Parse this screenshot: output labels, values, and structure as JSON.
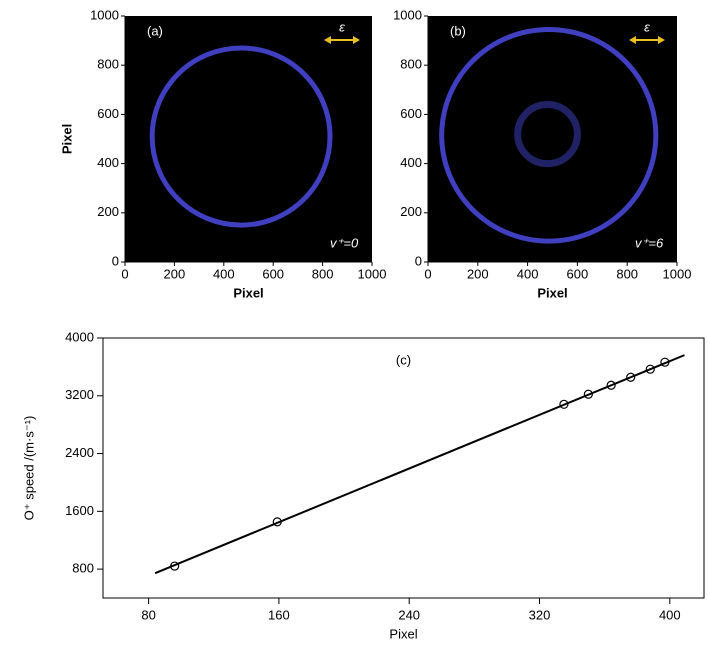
{
  "chart_data": [
    {
      "type": "image",
      "panel_label": "(a)",
      "annotation": "v⁺=0",
      "polarization": "ε",
      "xlabel": "Pixel",
      "ylabel": "Pixel",
      "xlim": [
        0,
        1000
      ],
      "ylim": [
        0,
        1000
      ],
      "xticks": [
        0,
        200,
        400,
        600,
        800,
        1000
      ],
      "yticks": [
        0,
        200,
        400,
        600,
        800,
        1000
      ],
      "background": "#000000",
      "color": "#4a4ae0",
      "rings": [
        {
          "cx": 470,
          "cy": 510,
          "r": 360
        }
      ]
    },
    {
      "type": "image",
      "panel_label": "(b)",
      "annotation": "v⁺=6",
      "polarization": "ε",
      "xlabel": "Pixel",
      "ylabel": null,
      "xlim": [
        0,
        1000
      ],
      "ylim": [
        0,
        1000
      ],
      "xticks": [
        0,
        200,
        400,
        600,
        800,
        1000
      ],
      "yticks": [
        0,
        200,
        400,
        600,
        800,
        1000
      ],
      "background": "#000000",
      "color": "#4a4ae0",
      "rings": [
        {
          "cx": 485,
          "cy": 515,
          "r": 430
        },
        {
          "cx": 480,
          "cy": 520,
          "r": 120
        }
      ]
    },
    {
      "type": "scatter",
      "panel_label": "(c)",
      "xlabel": "Pixel",
      "ylabel": "O⁺ speed /(m·s⁻¹)",
      "xlim": [
        52,
        421
      ],
      "ylim": [
        400,
        4000
      ],
      "xticks": [
        80,
        160,
        240,
        320,
        400
      ],
      "yticks": [
        800,
        1600,
        2400,
        3200,
        4000
      ],
      "x": [
        96,
        159,
        335,
        350,
        364,
        376,
        388,
        397
      ],
      "values": [
        842,
        1454,
        3082,
        3221,
        3346,
        3457,
        3568,
        3665
      ],
      "color": "#000000",
      "fit": {
        "x": [
          84,
          409
        ],
        "y": [
          744,
          3763
        ]
      }
    }
  ]
}
